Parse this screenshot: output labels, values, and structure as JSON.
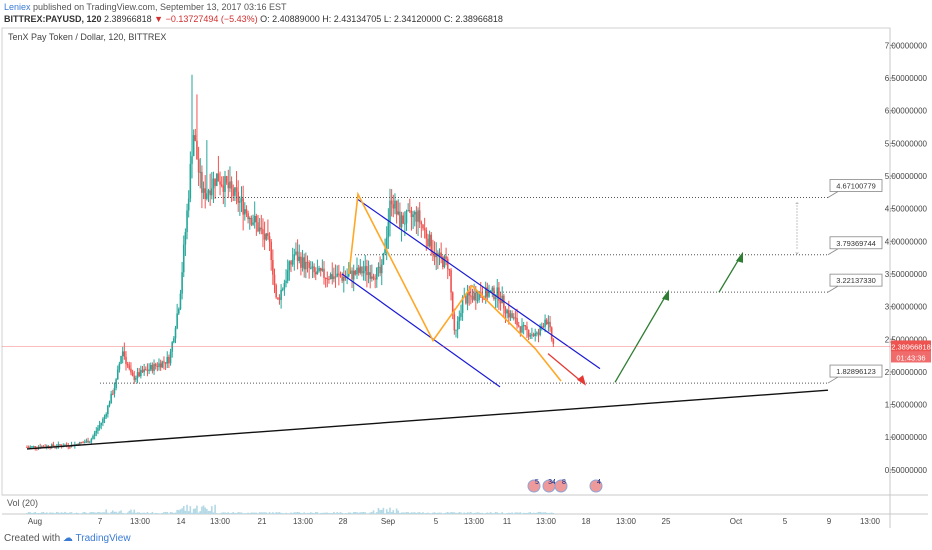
{
  "header": {
    "author": "Leniex",
    "published": "published on TradingView.com, September 13, 2017 03:16 EST",
    "symbol": "BITTREX:PAYUSD, 120",
    "last": "2.38966818",
    "change": "−0.13727494 (−5.43%)",
    "open": "O: 2.40889000",
    "high": "H: 2.43134705",
    "low": "L: 2.34120000",
    "close": "C: 2.38966818"
  },
  "footer": {
    "created_with": "Created with",
    "brand": "TradingView"
  },
  "chart_data": {
    "type": "candlestick",
    "title": "TenX Pay Token / Dollar, 120, BITTREX",
    "y_ticks": [
      "7.00000000",
      "6.50000000",
      "6.00000000",
      "5.50000000",
      "5.00000000",
      "4.50000000",
      "4.00000000",
      "3.50000000",
      "3.00000000",
      "2.50000000",
      "2.00000000",
      "1.50000000",
      "1.00000000",
      "0.50000000"
    ],
    "x_ticks": [
      "Aug",
      "7",
      "13:00",
      "14",
      "13:00",
      "21",
      "13:00",
      "28",
      "Sep",
      "5",
      "13:00",
      "11",
      "13:00",
      "18",
      "13:00",
      "25",
      "Oct",
      "5",
      "9",
      "13:00"
    ],
    "ylim": [
      0.2,
      7.2
    ],
    "price_label": "2.38966818",
    "timer_label": "01:43:36",
    "levels": [
      "4.67100779",
      "3.79369744",
      "3.22137330",
      "1.82896123"
    ],
    "volume_label": "Vol (20)",
    "event_badges": [
      "5",
      "34",
      "8",
      "4"
    ],
    "colors": {
      "up": "#26a69a",
      "down": "#ef5350",
      "channel": "#1a1ad6",
      "swing": "#ffa726",
      "up_arrow": "#2e7d32",
      "down_arrow": "#e53935",
      "trend": "#111111"
    }
  }
}
